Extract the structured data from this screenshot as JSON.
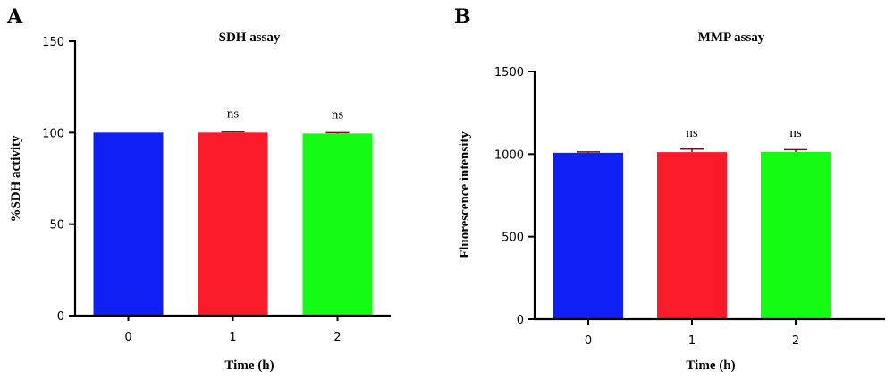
{
  "chart_data": [
    {
      "panel": "A",
      "type": "bar",
      "title": "SDH assay",
      "xlabel": "Time (h)",
      "ylabel": "%SDH activity",
      "categories": [
        "0",
        "1",
        "2"
      ],
      "values": [
        100,
        100,
        99.5
      ],
      "error": [
        0,
        0.4,
        0.5
      ],
      "annotations": [
        "",
        "ns",
        "ns"
      ],
      "colors": [
        "#0f1ff5",
        "#fb1a2a",
        "#14fb14"
      ],
      "ylim": [
        0,
        150
      ],
      "yticks": [
        0,
        50,
        100,
        150
      ],
      "grid": false
    },
    {
      "panel": "B",
      "type": "bar",
      "title": "MMP assay",
      "xlabel": "Time (h)",
      "ylabel": "Fluorescence intensity",
      "categories": [
        "0",
        "1",
        "2"
      ],
      "values": [
        1008,
        1012,
        1013
      ],
      "error": [
        5,
        18,
        14
      ],
      "annotations": [
        "",
        "ns",
        "ns"
      ],
      "colors": [
        "#0f1ff5",
        "#fb1a2a",
        "#14fb14"
      ],
      "ylim": [
        0,
        1500
      ],
      "yticks": [
        0,
        500,
        1000,
        1500
      ],
      "grid": false
    }
  ]
}
